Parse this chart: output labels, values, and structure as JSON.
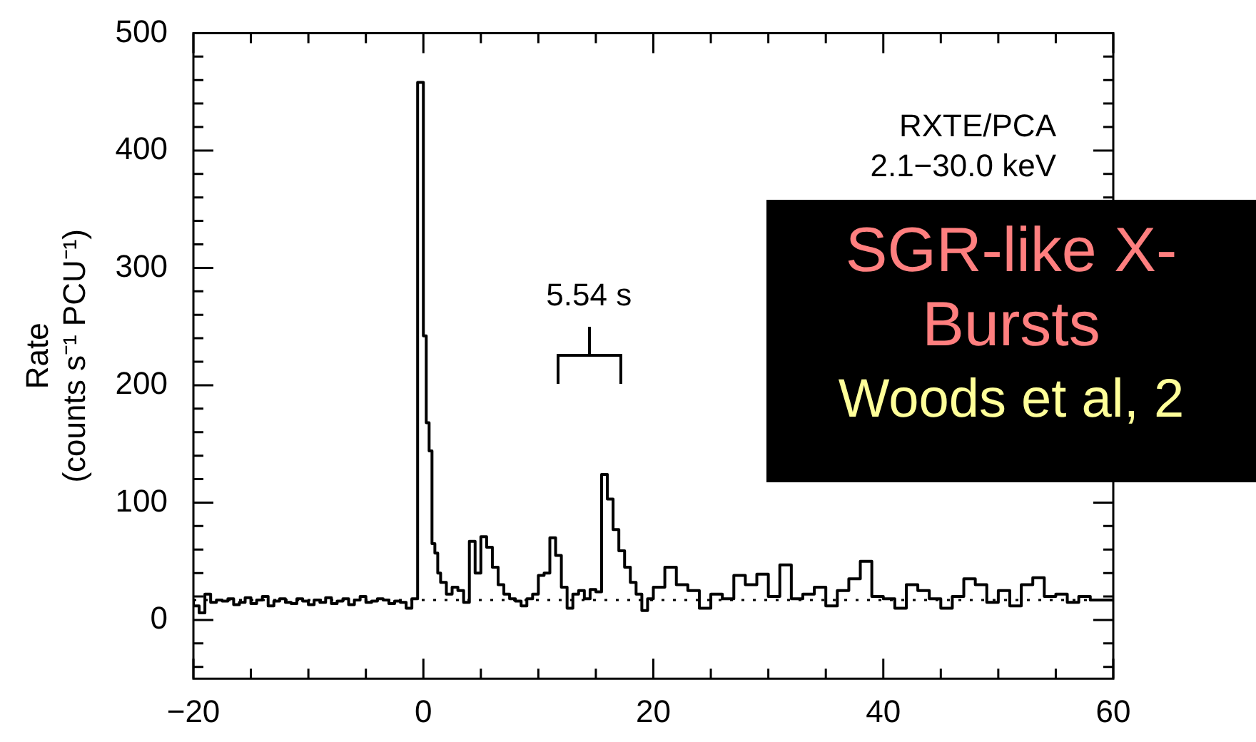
{
  "chart_data": {
    "type": "step",
    "ylabel": "Rate\n(counts s⁻¹ PCU⁻¹)",
    "xlim": [
      -20,
      60
    ],
    "ylim": [
      -50,
      500
    ],
    "xticks": [
      {
        "value": -20,
        "label": "−20"
      },
      {
        "value": -15,
        "label": null
      },
      {
        "value": -10,
        "label": null
      },
      {
        "value": -5,
        "label": null
      },
      0,
      {
        "value": 5,
        "label": null
      },
      {
        "value": 10,
        "label": null
      },
      {
        "value": 15,
        "label": null
      },
      20,
      {
        "value": 25,
        "label": null
      },
      {
        "value": 30,
        "label": null
      },
      {
        "value": 35,
        "label": null
      },
      40,
      {
        "value": 45,
        "label": null
      },
      {
        "value": 50,
        "label": null
      },
      {
        "value": 55,
        "label": null
      },
      60
    ],
    "yticks": [
      {
        "value": -40,
        "label": null
      },
      {
        "value": -20,
        "label": null
      },
      0,
      {
        "value": 20,
        "label": null
      },
      {
        "value": 40,
        "label": null
      },
      {
        "value": 60,
        "label": null
      },
      {
        "value": 80,
        "label": null
      },
      100,
      {
        "value": 120,
        "label": null
      },
      {
        "value": 140,
        "label": null
      },
      {
        "value": 160,
        "label": null
      },
      {
        "value": 180,
        "label": null
      },
      200,
      {
        "value": 220,
        "label": null
      },
      {
        "value": 240,
        "label": null
      },
      {
        "value": 260,
        "label": null
      },
      {
        "value": 280,
        "label": null
      },
      300,
      {
        "value": 320,
        "label": null
      },
      {
        "value": 340,
        "label": null
      },
      {
        "value": 360,
        "label": null
      },
      {
        "value": 380,
        "label": null
      },
      400,
      {
        "value": 420,
        "label": null
      },
      {
        "value": 440,
        "label": null
      },
      {
        "value": 460,
        "label": null
      },
      {
        "value": 480,
        "label": null
      },
      500
    ],
    "grid": false,
    "legend": false,
    "marker": "none",
    "line_style": "solid",
    "series": [
      {
        "color": "#000000",
        "x": [
          -20,
          -19.5,
          -19,
          -18.5,
          -18,
          -17.5,
          -17,
          -16.5,
          -16,
          -15.5,
          -15,
          -14.5,
          -14,
          -13.5,
          -13,
          -12.5,
          -12,
          -11.5,
          -11,
          -10.5,
          -10,
          -9.5,
          -9,
          -8.5,
          -8,
          -7.5,
          -7,
          -6.5,
          -6,
          -5.5,
          -5,
          -4.5,
          -4,
          -3.5,
          -3,
          -2.5,
          -2,
          -1.5,
          -1,
          -0.5,
          0,
          0.25,
          0.5,
          0.75,
          1,
          1.25,
          1.5,
          2,
          2.5,
          3,
          3.5,
          4,
          4.5,
          5,
          5.5,
          6,
          6.5,
          7,
          7.5,
          8,
          8.5,
          9,
          9.5,
          10,
          10.5,
          11,
          11.5,
          12,
          12.5,
          13,
          13.5,
          14,
          14.5,
          15,
          15.5,
          16,
          16.5,
          17,
          17.5,
          18,
          18.5,
          19,
          19.5,
          20,
          21,
          22,
          23,
          24,
          25,
          26,
          27,
          28,
          29,
          30,
          31,
          32,
          33,
          34,
          35,
          36,
          37,
          38,
          39,
          40,
          41,
          42,
          43,
          44,
          45,
          46,
          47,
          48,
          49,
          50,
          51,
          52,
          53,
          54,
          55,
          56,
          57,
          58,
          59,
          60
        ],
        "values": [
          18,
          12,
          6,
          22,
          15,
          17,
          16,
          18,
          13,
          15,
          19,
          14,
          17,
          20,
          12,
          16,
          18,
          15,
          14,
          18,
          16,
          13,
          17,
          15,
          19,
          14,
          16,
          18,
          13,
          17,
          20,
          15,
          16,
          18,
          17,
          14,
          16,
          15,
          10,
          18,
          458,
          242,
          168,
          144,
          65,
          57,
          40,
          32,
          22,
          28,
          25,
          15,
          67,
          40,
          71,
          62,
          45,
          30,
          22,
          18,
          16,
          12,
          18,
          22,
          38,
          40,
          70,
          55,
          28,
          10,
          22,
          25,
          18,
          26,
          24,
          124,
          103,
          77,
          59,
          45,
          32,
          22,
          8,
          18,
          28,
          45,
          30,
          25,
          10,
          22,
          18,
          38,
          30,
          39,
          20,
          47,
          18,
          22,
          28,
          12,
          25,
          35,
          50,
          20,
          18,
          10,
          30,
          25,
          18,
          10,
          20,
          35,
          30,
          15,
          25,
          12,
          30,
          36,
          20,
          22,
          15,
          20,
          17,
          17
        ]
      }
    ],
    "ref_lines": [
      {
        "axis": "y",
        "value": 17,
        "line_style": "dotted",
        "color": "#000000"
      }
    ],
    "annotations": [
      "RXTE/PCA",
      "2.1−30.0 keV",
      "5.54 s",
      "SGR-like X-",
      "Bursts",
      "Woods et al, 2"
    ]
  }
}
